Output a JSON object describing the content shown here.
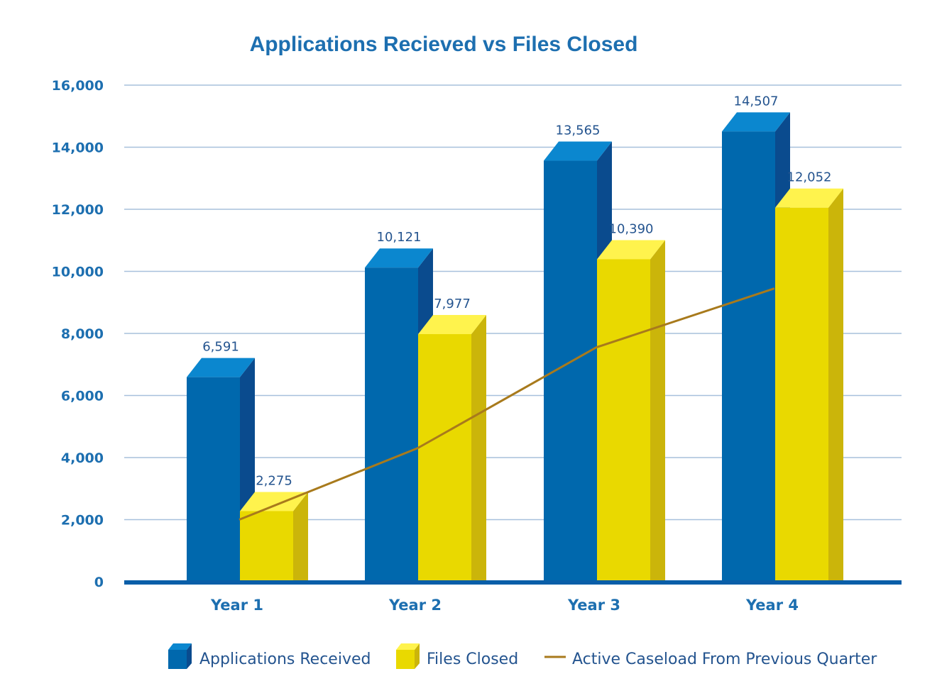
{
  "chart_data": {
    "type": "bar",
    "title": "Applications Recieved vs Files Closed",
    "categories": [
      "Year 1",
      "Year 2",
      "Year 3",
      "Year 4"
    ],
    "ylim": [
      0,
      16000
    ],
    "yticks": [
      0,
      2000,
      4000,
      6000,
      8000,
      10000,
      12000,
      14000,
      16000
    ],
    "ytick_labels": [
      "0",
      "2,000",
      "4,000",
      "6,000",
      "8,000",
      "10,000",
      "12,000",
      "14,000",
      "16,000"
    ],
    "grid": true,
    "legend_position": "bottom",
    "series": [
      {
        "name": "Applications Received",
        "type": "bar",
        "values": [
          6591,
          10121,
          13565,
          14507
        ],
        "labels": [
          "6,591",
          "10,121",
          "13,565",
          "14,507"
        ],
        "color": "#0066ad"
      },
      {
        "name": "Files Closed",
        "type": "bar",
        "values": [
          2275,
          7977,
          10390,
          12052
        ],
        "labels": [
          "2,275",
          "7,977",
          "10,390",
          "12,052"
        ],
        "color": "#e8d800"
      },
      {
        "name": "Active Caseload From Previous Quarter",
        "type": "line",
        "values": [
          2000,
          4300,
          7550,
          9450
        ],
        "color": "#a87a1c"
      }
    ]
  }
}
